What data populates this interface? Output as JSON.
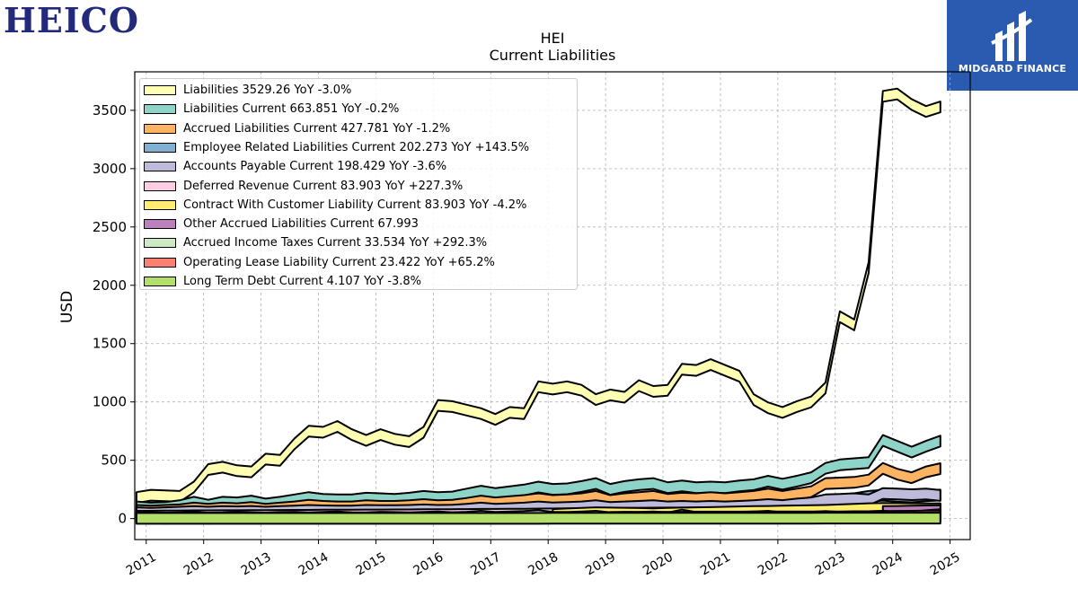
{
  "branding": {
    "left_logo": "HEICO",
    "right_logo_text": "MIDGARD FINANCE",
    "right_logo_icon": "midgard-mark-icon",
    "right_logo_color": "#2a5bb0"
  },
  "chart_data": {
    "type": "area",
    "title": "HEI",
    "subtitle": "Current  Liabilities",
    "ylabel": "USD",
    "xlabel": "",
    "xlim": [
      2010.8,
      2025.35
    ],
    "ylim": [
      -180,
      3830
    ],
    "yticks": [
      0,
      500,
      1000,
      1500,
      2000,
      2500,
      3000,
      3500
    ],
    "xticks": [
      "2011",
      "2012",
      "2013",
      "2014",
      "2015",
      "2016",
      "2017",
      "2018",
      "2019",
      "2020",
      "2021",
      "2022",
      "2023",
      "2024",
      "2025"
    ],
    "grid": true,
    "legend_position": "upper-left",
    "x": [
      2010.83,
      2011.08,
      2011.33,
      2011.58,
      2011.83,
      2012.08,
      2012.33,
      2012.58,
      2012.83,
      2013.08,
      2013.33,
      2013.58,
      2013.83,
      2014.08,
      2014.33,
      2014.58,
      2014.83,
      2015.08,
      2015.33,
      2015.58,
      2015.83,
      2016.08,
      2016.33,
      2016.58,
      2016.83,
      2017.08,
      2017.33,
      2017.58,
      2017.83,
      2018.08,
      2018.33,
      2018.58,
      2018.83,
      2019.08,
      2019.33,
      2019.58,
      2019.83,
      2020.08,
      2020.33,
      2020.58,
      2020.83,
      2021.08,
      2021.33,
      2021.58,
      2021.83,
      2022.08,
      2022.33,
      2022.58,
      2022.83,
      2023.08,
      2023.33,
      2023.58,
      2023.83,
      2024.08,
      2024.33,
      2024.58,
      2024.83
    ],
    "series": [
      {
        "name": "Liabilities",
        "value_label": "3529.26",
        "change_label": "YoY -3.0%",
        "color": "#ffffb3",
        "values": [
          180,
          200,
          195,
          190,
          270,
          420,
          440,
          410,
          400,
          510,
          500,
          640,
          750,
          740,
          790,
          720,
          670,
          720,
          680,
          660,
          740,
          970,
          960,
          930,
          900,
          850,
          910,
          900,
          1130,
          1110,
          1130,
          1100,
          1020,
          1060,
          1040,
          1140,
          1090,
          1100,
          1280,
          1270,
          1320,
          1270,
          1220,
          1020,
          950,
          910,
          960,
          1000,
          1120,
          1730,
          1660,
          2150,
          3620,
          3640,
          3550,
          3490,
          3529
        ]
      },
      {
        "name": "Liabilities Current",
        "value_label": "663.851",
        "change_label": "YoY -0.2%",
        "color": "#8dd3c7",
        "values": [
          100,
          90,
          95,
          110,
          140,
          115,
          140,
          135,
          150,
          125,
          140,
          160,
          180,
          165,
          160,
          160,
          175,
          170,
          165,
          175,
          190,
          180,
          185,
          210,
          235,
          215,
          230,
          245,
          270,
          250,
          255,
          275,
          300,
          250,
          275,
          290,
          300,
          265,
          280,
          265,
          270,
          265,
          280,
          290,
          320,
          295,
          320,
          350,
          430,
          460,
          470,
          480,
          670,
          620,
          570,
          620,
          664
        ]
      },
      {
        "name": "Accrued Liabilities Current",
        "value_label": "427.781",
        "change_label": "YoY -1.2%",
        "color": "#fdb462",
        "values": [
          70,
          65,
          70,
          75,
          90,
          80,
          90,
          85,
          95,
          80,
          90,
          100,
          115,
          105,
          100,
          100,
          110,
          105,
          105,
          110,
          120,
          110,
          115,
          130,
          150,
          135,
          145,
          155,
          170,
          155,
          160,
          170,
          190,
          155,
          170,
          180,
          190,
          165,
          175,
          170,
          180,
          170,
          180,
          190,
          210,
          190,
          210,
          230,
          300,
          305,
          310,
          330,
          430,
          380,
          350,
          400,
          428
        ]
      },
      {
        "name": "Employee Related Liabilities Current",
        "value_label": "202.273",
        "change_label": "YoY +143.5%",
        "color": "#80b1d3",
        "values": [
          null,
          null,
          null,
          null,
          null,
          null,
          null,
          null,
          null,
          null,
          null,
          null,
          null,
          null,
          null,
          null,
          null,
          null,
          null,
          null,
          null,
          null,
          null,
          null,
          null,
          null,
          null,
          null,
          null,
          null,
          null,
          null,
          null,
          null,
          null,
          null,
          null,
          null,
          null,
          null,
          null,
          null,
          null,
          null,
          null,
          null,
          null,
          null,
          150,
          160,
          170,
          190,
          200,
          190,
          185,
          195,
          202
        ]
      },
      {
        "name": "Accounts Payable Current",
        "value_label": "198.429",
        "change_label": "YoY -3.6%",
        "color": "#bebada",
        "values": [
          50,
          45,
          50,
          55,
          60,
          55,
          60,
          58,
          62,
          55,
          60,
          65,
          70,
          66,
          65,
          65,
          70,
          68,
          68,
          70,
          75,
          70,
          72,
          80,
          90,
          80,
          85,
          90,
          100,
          92,
          95,
          100,
          110,
          95,
          100,
          105,
          110,
          100,
          105,
          100,
          105,
          100,
          105,
          110,
          120,
          112,
          125,
          135,
          160,
          165,
          170,
          160,
          215,
          210,
          205,
          210,
          198
        ]
      },
      {
        "name": "Deferred Revenue Current",
        "value_label": "83.903",
        "change_label": "YoY +227.3%",
        "color": "#fccde5",
        "values": [
          20,
          20,
          22,
          22,
          24,
          24,
          25,
          25,
          26,
          26,
          27,
          28,
          28,
          29,
          30,
          30,
          31,
          31,
          32,
          32,
          33,
          33,
          34,
          35,
          36,
          36,
          37,
          38,
          39,
          40,
          41,
          42,
          43,
          44,
          45,
          46,
          47,
          48,
          48,
          49,
          50,
          50,
          50,
          52,
          54,
          55,
          56,
          58,
          60,
          62,
          64,
          66,
          70,
          72,
          76,
          80,
          84
        ]
      },
      {
        "name": "Contract With Customer Liability Current",
        "value_label": "83.903",
        "change_label": "YoY -4.2%",
        "color": "#ffed6f",
        "values": [
          null,
          null,
          null,
          null,
          null,
          null,
          null,
          null,
          null,
          null,
          null,
          null,
          null,
          null,
          null,
          null,
          null,
          null,
          null,
          null,
          null,
          null,
          null,
          null,
          null,
          null,
          null,
          null,
          null,
          35,
          40,
          45,
          50,
          48,
          46,
          44,
          42,
          45,
          48,
          50,
          52,
          55,
          58,
          60,
          62,
          64,
          66,
          68,
          70,
          75,
          80,
          85,
          88,
          86,
          85,
          84,
          84
        ]
      },
      {
        "name": "Other Accrued Liabilities Current",
        "value_label": "67.993",
        "change_label": "",
        "color": "#bc80bd",
        "values": [
          null,
          null,
          null,
          null,
          null,
          null,
          null,
          null,
          null,
          null,
          null,
          null,
          null,
          null,
          null,
          null,
          null,
          null,
          null,
          null,
          null,
          null,
          null,
          null,
          null,
          null,
          null,
          null,
          null,
          null,
          null,
          null,
          null,
          null,
          null,
          null,
          null,
          null,
          null,
          null,
          null,
          null,
          null,
          null,
          null,
          null,
          null,
          null,
          null,
          null,
          null,
          null,
          60,
          62,
          64,
          66,
          68
        ]
      },
      {
        "name": "Accrued Income Taxes Current",
        "value_label": "33.534",
        "change_label": "YoY +292.3%",
        "color": "#ccebc5",
        "values": [
          5,
          8,
          4,
          6,
          10,
          4,
          6,
          12,
          8,
          5,
          9,
          12,
          6,
          10,
          14,
          8,
          7,
          12,
          9,
          6,
          10,
          15,
          8,
          12,
          20,
          10,
          14,
          18,
          25,
          12,
          10,
          15,
          20,
          8,
          12,
          10,
          14,
          6,
          30,
          10,
          12,
          8,
          10,
          14,
          20,
          8,
          10,
          12,
          18,
          10,
          14,
          16,
          20,
          12,
          10,
          25,
          34
        ]
      },
      {
        "name": "Operating Lease Liability Current",
        "value_label": "23.422",
        "change_label": "YoY +65.2%",
        "color": "#fb8072",
        "values": [
          null,
          null,
          null,
          null,
          null,
          null,
          null,
          null,
          null,
          null,
          null,
          null,
          null,
          null,
          null,
          null,
          null,
          null,
          null,
          null,
          null,
          null,
          null,
          null,
          null,
          null,
          null,
          null,
          null,
          null,
          null,
          null,
          null,
          10,
          11,
          11,
          12,
          12,
          12,
          13,
          13,
          13,
          13,
          14,
          14,
          14,
          14,
          15,
          15,
          15,
          16,
          16,
          18,
          19,
          20,
          22,
          23
        ]
      },
      {
        "name": "Long Term Debt Current",
        "value_label": "4.107",
        "change_label": "YoY -3.8%",
        "color": "#b3de69",
        "values": [
          2,
          2,
          2,
          2,
          2,
          2,
          2,
          2,
          2,
          2,
          2,
          2,
          2,
          2,
          2,
          2,
          2,
          2,
          2,
          2,
          2,
          2,
          2,
          2,
          2,
          2,
          2,
          2,
          2,
          3,
          3,
          3,
          3,
          3,
          3,
          3,
          3,
          3,
          3,
          3,
          3,
          3,
          3,
          3,
          3,
          3,
          3,
          3,
          4,
          4,
          4,
          4,
          4,
          4,
          4,
          4,
          4
        ]
      }
    ]
  }
}
